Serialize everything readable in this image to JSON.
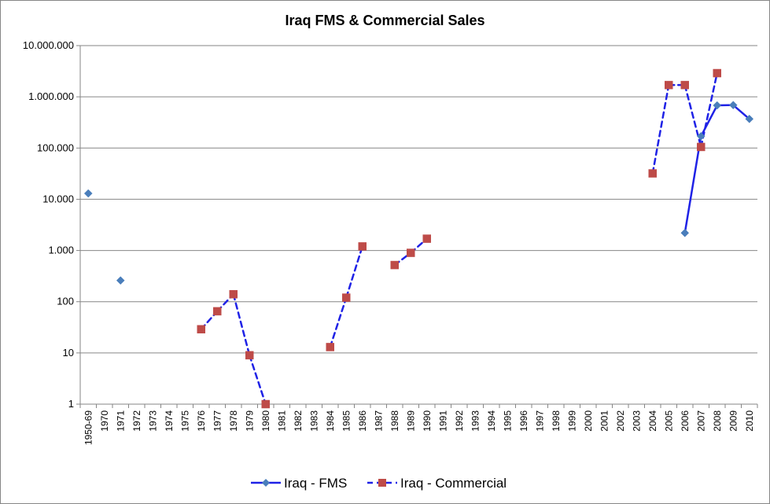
{
  "chart_data": {
    "type": "line",
    "title": "Iraq FMS & Commercial Sales",
    "xlabel": "",
    "ylabel": "",
    "yscale": "log",
    "ylim": [
      1,
      10000000
    ],
    "y_tick_labels": [
      "1",
      "10",
      "100",
      "1.000",
      "10.000",
      "100.000",
      "1.000.000",
      "10.000.000"
    ],
    "grid": "horizontal",
    "legend_position": "bottom",
    "categories": [
      "1950-69",
      "1970",
      "1971",
      "1972",
      "1973",
      "1974",
      "1975",
      "1976",
      "1977",
      "1978",
      "1979",
      "1980",
      "1981",
      "1982",
      "1983",
      "1984",
      "1985",
      "1986",
      "1987",
      "1988",
      "1989",
      "1990",
      "1991",
      "1992",
      "1993",
      "1994",
      "1995",
      "1996",
      "1997",
      "1998",
      "1999",
      "2000",
      "2001",
      "2002",
      "2003",
      "2004",
      "2005",
      "2006",
      "2007",
      "2008",
      "2009",
      "2010"
    ],
    "series": [
      {
        "name": "Iraq - FMS",
        "color": "#4a7ebb",
        "line_color": "#1f22e6",
        "line_style": "solid",
        "marker": "diamond",
        "values": [
          13000,
          null,
          260,
          null,
          null,
          null,
          null,
          null,
          null,
          null,
          null,
          null,
          null,
          null,
          null,
          null,
          null,
          null,
          null,
          null,
          null,
          null,
          null,
          null,
          null,
          null,
          null,
          null,
          null,
          null,
          null,
          null,
          null,
          null,
          null,
          null,
          null,
          2200,
          170000,
          680000,
          690000,
          370000
        ]
      },
      {
        "name": "Iraq - Commercial",
        "color": "#be4b48",
        "line_color": "#1f22e6",
        "line_style": "dashed",
        "marker": "square",
        "values": [
          null,
          null,
          null,
          null,
          null,
          null,
          null,
          29,
          65,
          140,
          9,
          1,
          null,
          null,
          null,
          13,
          120,
          1200,
          null,
          520,
          900,
          1700,
          null,
          null,
          null,
          null,
          null,
          null,
          null,
          null,
          null,
          null,
          null,
          null,
          null,
          32000,
          1700000,
          1700000,
          105000,
          2900000,
          null,
          null
        ]
      }
    ]
  }
}
